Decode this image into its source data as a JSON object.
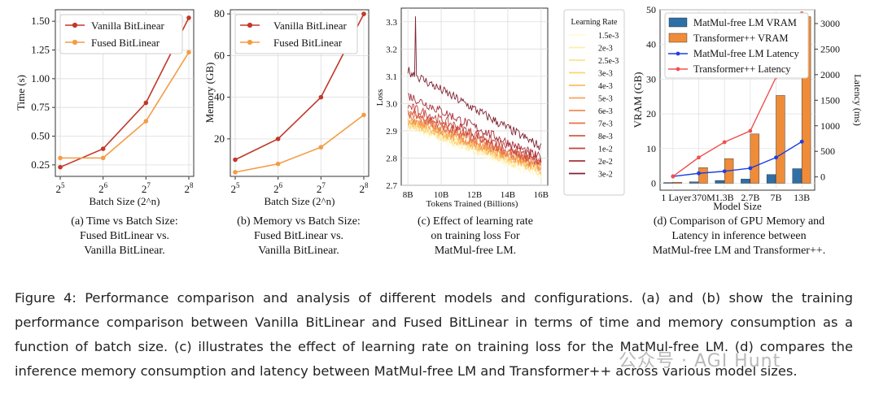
{
  "chart_data": [
    {
      "type": "line",
      "title": "",
      "xlabel": "Batch Size (2^n)",
      "ylabel": "Time (s)",
      "x_exponents": [
        5,
        6,
        7,
        8
      ],
      "xtick_labels": [
        "2^5",
        "2^6",
        "2^7",
        "2^8"
      ],
      "ylim": [
        0.15,
        1.6
      ],
      "yticks": [
        0.25,
        0.5,
        0.75,
        1.0,
        1.25,
        1.5
      ],
      "ytick_labels": [
        "0.25",
        "0.50",
        "0.75",
        "1.00",
        "1.25",
        "1.50"
      ],
      "legend_position": "top-left",
      "series": [
        {
          "name": "Vanilla BitLinear",
          "color": "#c0392b",
          "values": [
            0.23,
            0.39,
            0.79,
            1.53
          ]
        },
        {
          "name": "Fused BitLinear",
          "color": "#f39c44",
          "values": [
            0.31,
            0.31,
            0.63,
            1.23
          ]
        }
      ],
      "caption": [
        "(a) Time vs Batch Size:",
        "Fused BitLinear vs.",
        "Vanilla BitLinear."
      ]
    },
    {
      "type": "line",
      "title": "",
      "xlabel": "Batch Size (2^n)",
      "ylabel": "Memory (GB)",
      "x_exponents": [
        5,
        6,
        7,
        8
      ],
      "xtick_labels": [
        "2^5",
        "2^6",
        "2^7",
        "2^8"
      ],
      "ylim": [
        2,
        82
      ],
      "yticks": [
        20,
        40,
        60,
        80
      ],
      "ytick_labels": [
        "20",
        "40",
        "60",
        "80"
      ],
      "legend_position": "top-left",
      "series": [
        {
          "name": "Vanilla BitLinear",
          "color": "#c0392b",
          "values": [
            10,
            20,
            40,
            80
          ]
        },
        {
          "name": "Fused BitLinear",
          "color": "#f39c44",
          "values": [
            4,
            8,
            16,
            31.5
          ]
        }
      ],
      "caption": [
        "(b) Memory vs Batch Size:",
        "Fused BitLinear vs.",
        "Vanilla BitLinear."
      ]
    },
    {
      "type": "line",
      "title": "",
      "xlabel": "Tokens Trained (Billions)",
      "ylabel": "Loss",
      "xlim": [
        7.6,
        16.4
      ],
      "xticks": [
        8,
        10,
        12,
        14,
        16
      ],
      "xtick_labels": [
        "8B",
        "10B",
        "12B",
        "14B",
        "16B"
      ],
      "ylim": [
        2.7,
        3.35
      ],
      "yticks": [
        2.7,
        2.8,
        2.9,
        3.0,
        3.1,
        3.2,
        3.3
      ],
      "ytick_labels": [
        "2.7",
        "2.8",
        "2.9",
        "3.0",
        "3.1",
        "3.2",
        "3.3"
      ],
      "legend_title": "Learning Rate",
      "legend_position": "right-outside",
      "series": [
        {
          "name": "1.5e-3",
          "color": "#fff9d8",
          "start": 2.91,
          "end": 2.74
        },
        {
          "name": "2e-3",
          "color": "#ffeeb0",
          "start": 2.92,
          "end": 2.745
        },
        {
          "name": "2.5e-3",
          "color": "#fde38e",
          "start": 2.925,
          "end": 2.75
        },
        {
          "name": "3e-3",
          "color": "#fcd273",
          "start": 2.93,
          "end": 2.755
        },
        {
          "name": "4e-3",
          "color": "#fbbc62",
          "start": 2.935,
          "end": 2.76
        },
        {
          "name": "5e-3",
          "color": "#f7a357",
          "start": 2.94,
          "end": 2.765
        },
        {
          "name": "6e-3",
          "color": "#f08b4d",
          "start": 2.95,
          "end": 2.77
        },
        {
          "name": "7e-3",
          "color": "#e57246",
          "start": 2.96,
          "end": 2.775
        },
        {
          "name": "8e-3",
          "color": "#d65a41",
          "start": 2.97,
          "end": 2.78
        },
        {
          "name": "1e-2",
          "color": "#c1443e",
          "start": 2.99,
          "end": 2.79
        },
        {
          "name": "2e-2",
          "color": "#a5303c",
          "start": 3.03,
          "end": 2.8
        },
        {
          "name": "3e-2",
          "color": "#7f2231",
          "start": 3.12,
          "end": 2.84
        }
      ],
      "caption": [
        "(c) Effect of learning rate",
        "on training loss For",
        "MatMul-free LM."
      ]
    },
    {
      "type": "bar",
      "title": "",
      "xlabel": "Model Size",
      "ylabel": "VRAM (GB)",
      "ylabel_right": "Latency (ms)",
      "categories": [
        "1 Layer",
        "370M",
        "1.3B",
        "2.7B",
        "7B",
        "13B"
      ],
      "ylim": [
        -2,
        50
      ],
      "yticks": [
        0,
        10,
        20,
        30,
        40,
        50
      ],
      "ytick_labels": [
        "0",
        "10",
        "20",
        "30",
        "40",
        "50"
      ],
      "ylim_right": [
        -260,
        3270
      ],
      "yticks_right": [
        0,
        500,
        1000,
        1500,
        2000,
        2500,
        3000
      ],
      "ytick_labels_right": [
        "0",
        "500",
        "1000",
        "1500",
        "2000",
        "2500",
        "3000"
      ],
      "legend_position": "top-left",
      "series": [
        {
          "name": "MatMul-free LM VRAM",
          "kind": "bar",
          "axis": "left",
          "color": "#2e6fa8",
          "values": [
            0.2,
            0.4,
            0.8,
            1.2,
            2.5,
            4.2
          ]
        },
        {
          "name": "Transformer++ VRAM",
          "kind": "bar",
          "axis": "left",
          "color": "#ef8c3a",
          "values": [
            0.3,
            4.5,
            7.1,
            14.2,
            25.3,
            48.0
          ]
        },
        {
          "name": "MatMul-free LM Latency",
          "kind": "line",
          "axis": "right",
          "color": "#1f3fe0",
          "values": [
            10,
            70,
            110,
            170,
            380,
            690
          ]
        },
        {
          "name": "Transformer++ Latency",
          "kind": "line",
          "axis": "right",
          "color": "#f05050",
          "values": [
            10,
            380,
            680,
            900,
            1950,
            3200
          ]
        }
      ],
      "caption": [
        "(d) Comparison of GPU Memory and",
        "Latency in inference between",
        "MatMul-free LM and Transformer++."
      ]
    }
  ],
  "figure_caption": "Figure 4: Performance comparison and analysis of different models and configurations. (a) and (b) show the training performance comparison between Vanilla BitLinear and Fused BitLinear in terms of time and memory consumption as a function of batch size. (c) illustrates the effect of learning rate on training loss for the MatMul-free LM. (d) compares the inference memory consumption and latency between MatMul-free LM and Transformer++ across various model sizes.",
  "watermark": "公众号 · AGI Hunt"
}
